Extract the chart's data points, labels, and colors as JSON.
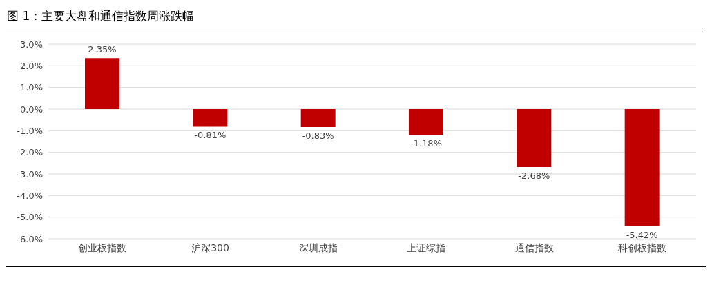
{
  "chart_data": {
    "type": "bar",
    "title": "图 1：主要大盘和通信指数周涨跌幅",
    "categories": [
      "创业板指数",
      "沪深300",
      "深圳成指",
      "上证综指",
      "通信指数",
      "科创板指数"
    ],
    "values": [
      2.35,
      -0.81,
      -0.83,
      -1.18,
      -2.68,
      -5.42
    ],
    "value_labels": [
      "2.35%",
      "-0.81%",
      "-0.83%",
      "-1.18%",
      "-2.68%",
      "-5.42%"
    ],
    "color": "#c00000",
    "ylim": [
      -6,
      3
    ],
    "yticks": [
      {
        "value": 3,
        "label": "3.0%"
      },
      {
        "value": 2,
        "label": "2.0%"
      },
      {
        "value": 1,
        "label": "1.0%"
      },
      {
        "value": 0,
        "label": "0.0%"
      },
      {
        "value": -1,
        "label": "-1.0%"
      },
      {
        "value": -2,
        "label": "-2.0%"
      },
      {
        "value": -3,
        "label": "-3.0%"
      },
      {
        "value": -4,
        "label": "-4.0%"
      },
      {
        "value": -5,
        "label": "-5.0%"
      },
      {
        "value": -6,
        "label": "-6.0%"
      }
    ],
    "grid": "y"
  }
}
